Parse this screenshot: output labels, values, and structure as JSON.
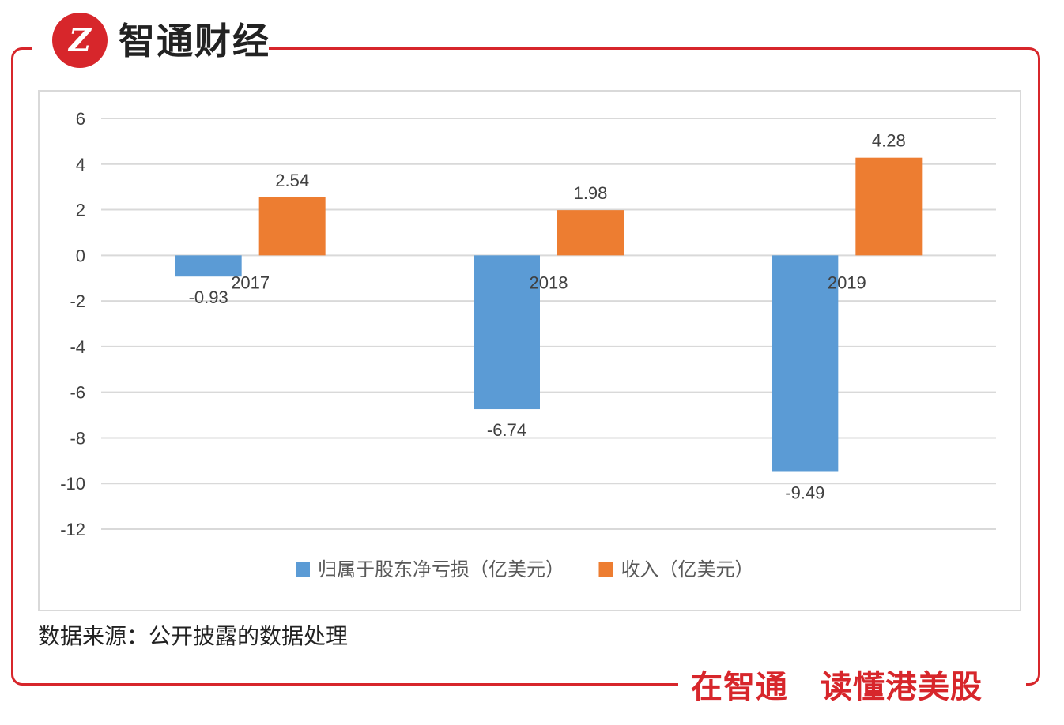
{
  "brand": {
    "name": "智通财经",
    "logo_text": "Z",
    "slogan": "在智通　读懂港美股"
  },
  "source_note": "数据来源：公开披露的数据处理",
  "colors": {
    "frame": "#d7262b",
    "series_loss": "#5b9bd5",
    "series_revenue": "#ed7d31",
    "grid": "#d9d9d9"
  },
  "chart_data": {
    "type": "bar",
    "title": "",
    "xlabel": "",
    "ylabel": "",
    "categories": [
      "2017",
      "2018",
      "2019"
    ],
    "series": [
      {
        "name": "归属于股东净亏损（亿美元）",
        "values": [
          -0.93,
          -6.74,
          -9.49
        ],
        "labels": [
          "-0.93",
          "-6.74",
          "-9.49"
        ]
      },
      {
        "name": "收入（亿美元）",
        "values": [
          2.54,
          1.98,
          4.28
        ],
        "labels": [
          "2.54",
          "1.98",
          "4.28"
        ]
      }
    ],
    "ylim": [
      -12,
      6
    ],
    "yticks": [
      6,
      4,
      2,
      0,
      -2,
      -4,
      -6,
      -8,
      -10,
      -12
    ],
    "grid": true,
    "legend": "bottom"
  }
}
